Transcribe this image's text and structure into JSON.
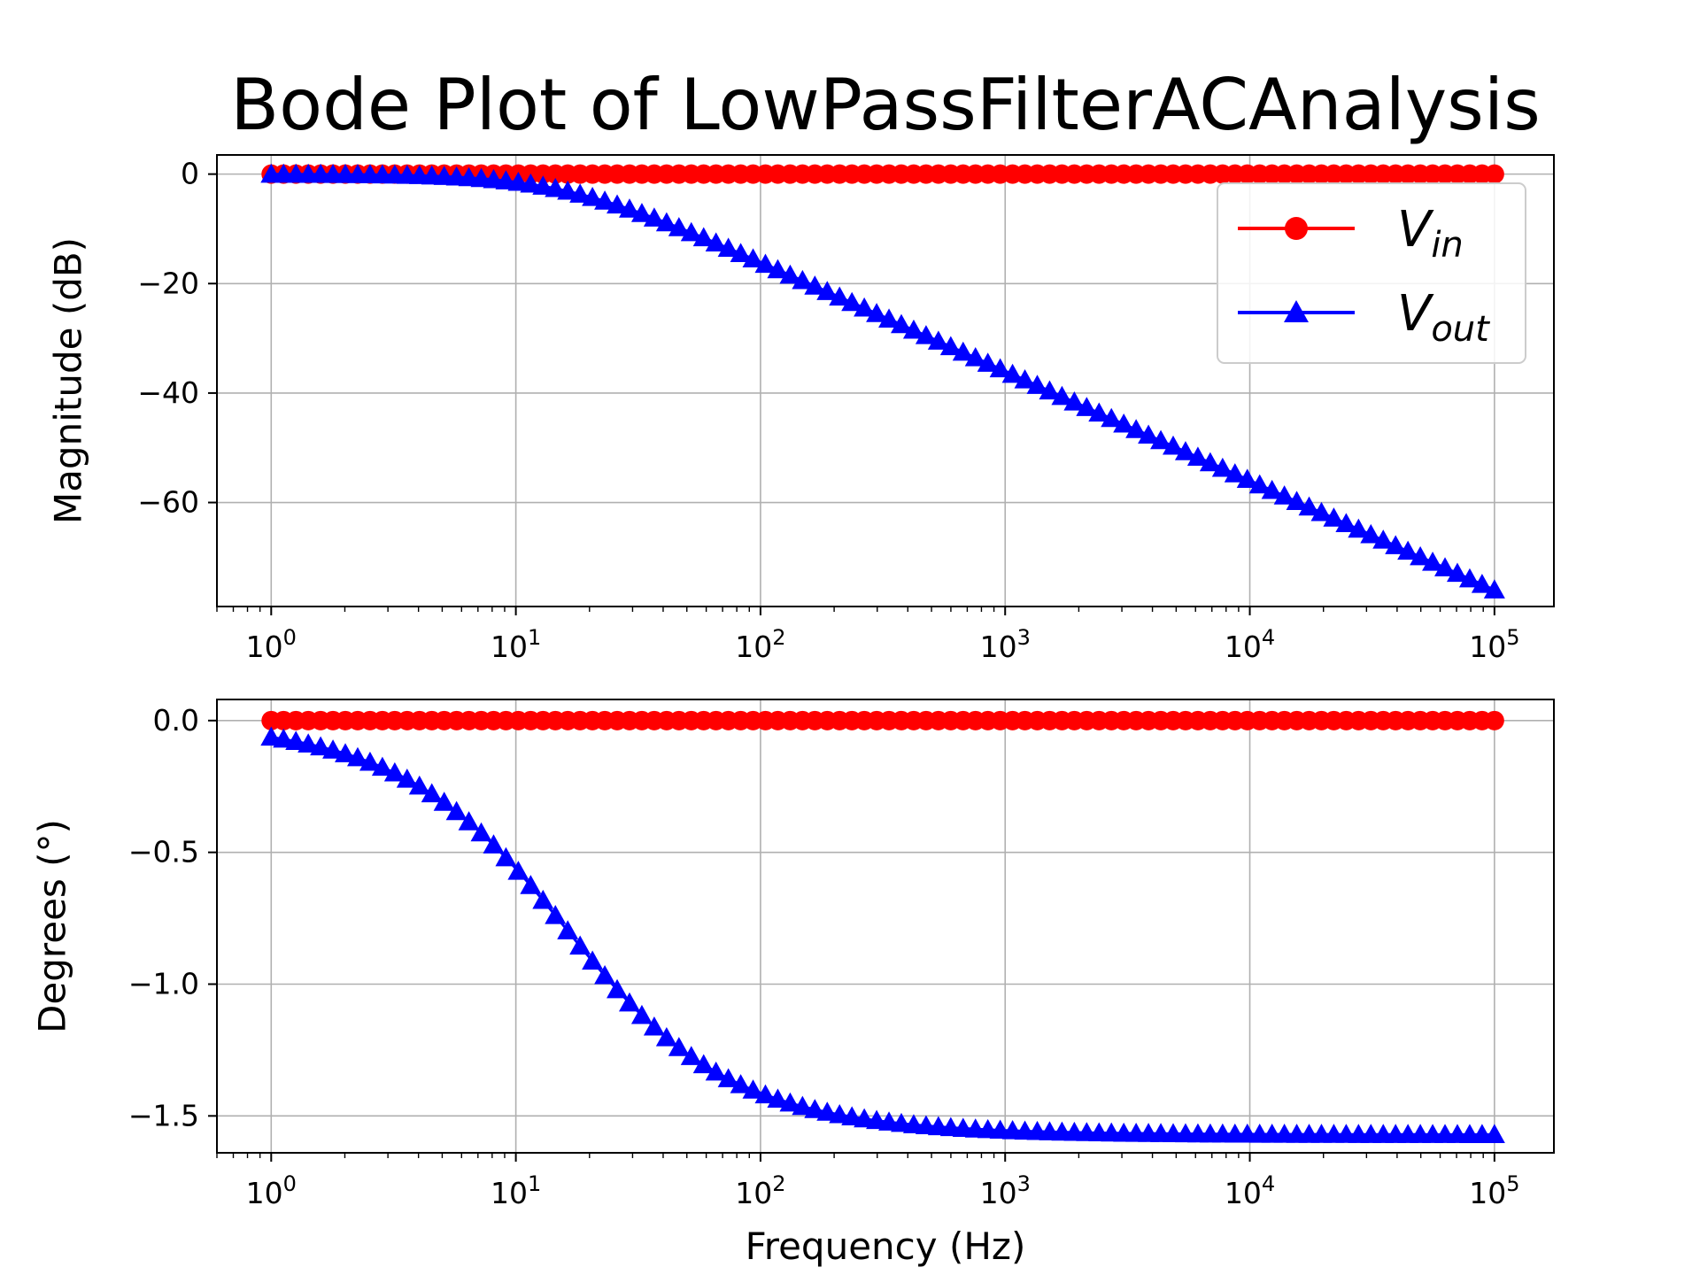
{
  "chart_data": {
    "type": "line",
    "title": "Bode Plot of LowPassFilterACAnalysis",
    "xlabel": "Frequency (Hz)",
    "x_scale": "log",
    "x_range": [
      1,
      100000
    ],
    "x_ticks": [
      {
        "value": 1,
        "base": "10",
        "exp": "0"
      },
      {
        "value": 10,
        "base": "10",
        "exp": "1"
      },
      {
        "value": 100,
        "base": "10",
        "exp": "2"
      },
      {
        "value": 1000,
        "base": "10",
        "exp": "3"
      },
      {
        "value": 10000,
        "base": "10",
        "exp": "4"
      },
      {
        "value": 100000,
        "base": "10",
        "exp": "5"
      }
    ],
    "grid": true,
    "legend": {
      "placement": "top-right",
      "entries": [
        {
          "base": "V",
          "sub": "in",
          "color": "#ff0000",
          "marker": "circle"
        },
        {
          "base": "V",
          "sub": "out",
          "color": "#0000ff",
          "marker": "triangle"
        }
      ]
    },
    "n_points": 100,
    "panels": [
      {
        "ylabel": "Magnitude (dB)",
        "ylim": [
          -79,
          3.5
        ],
        "yticks": [
          0,
          -20,
          -40,
          -60
        ],
        "ytick_labels": [
          "0",
          "−20",
          "−40",
          "−60"
        ],
        "series": [
          {
            "name": "V_in",
            "color": "#ff0000",
            "marker": "circle",
            "model": "constant",
            "value": 0
          },
          {
            "name": "V_out",
            "color": "#0000ff",
            "marker": "triangle",
            "model": "first_order_lowpass_db",
            "cutoff_hz": 15.9
          }
        ]
      },
      {
        "ylabel": "Degrees (°)",
        "ylim": [
          -1.64,
          0.08
        ],
        "yticks": [
          0.0,
          -0.5,
          -1.0,
          -1.5
        ],
        "ytick_labels": [
          "0.0",
          "−0.5",
          "−1.0",
          "−1.5"
        ],
        "series": [
          {
            "name": "V_in",
            "color": "#ff0000",
            "marker": "circle",
            "model": "constant",
            "value": 0
          },
          {
            "name": "V_out",
            "color": "#0000ff",
            "marker": "triangle",
            "model": "first_order_lowpass_phase_rad",
            "cutoff_hz": 15.9
          }
        ]
      }
    ]
  }
}
